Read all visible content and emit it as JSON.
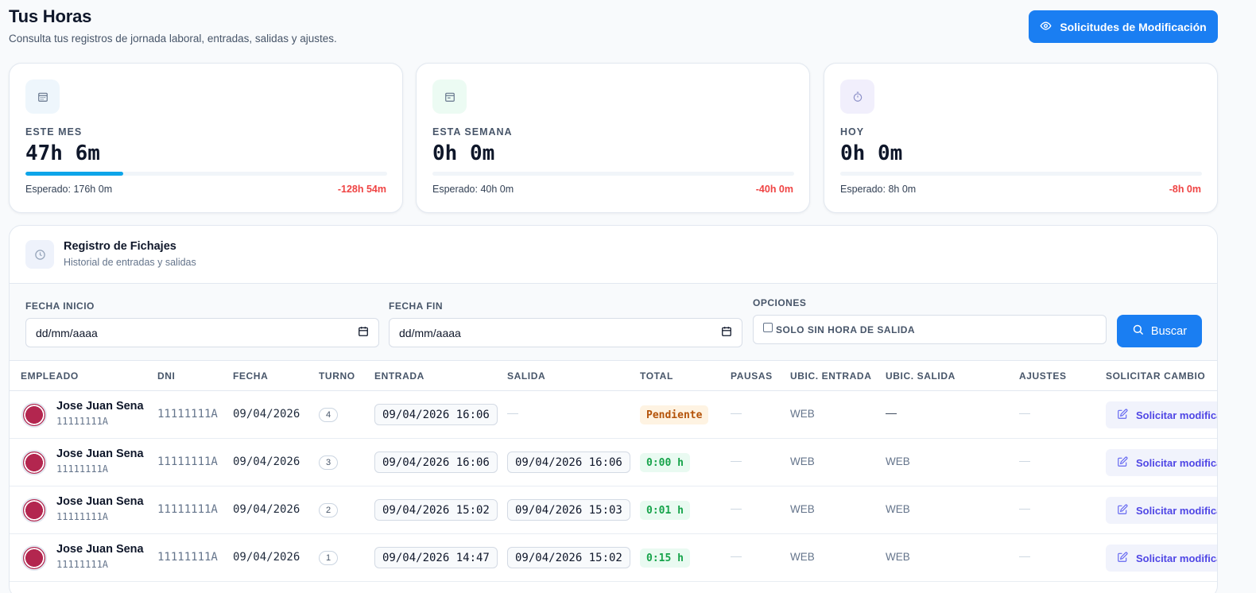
{
  "header": {
    "title": "Tus Horas",
    "subtitle": "Consulta tus registros de jornada laboral, entradas, salidas y ajustes.",
    "requests_button": "Solicitudes de Modificación"
  },
  "stats": [
    {
      "label": "ESTE MES",
      "value": "47h 6m",
      "progress": 0.27,
      "expected": "Esperado: 176h 0m",
      "diff": "-128h 54m",
      "icon": "calendar-icon",
      "icon_bg": "#eef6fc",
      "icon_color": "#64748b"
    },
    {
      "label": "ESTA SEMANA",
      "value": "0h 0m",
      "progress": 0,
      "expected": "Esperado: 40h 0m",
      "diff": "-40h 0m",
      "icon": "calendar-week-icon",
      "icon_bg": "#ecfbf3",
      "icon_color": "#64748b"
    },
    {
      "label": "HOY",
      "value": "0h 0m",
      "progress": 0,
      "expected": "Esperado: 8h 0m",
      "diff": "-8h 0m",
      "icon": "timer-icon",
      "icon_bg": "#f1effc",
      "icon_color": "#8b8fc7"
    }
  ],
  "panel": {
    "title": "Registro de Fichajes",
    "subtitle": "Historial de entradas y salidas",
    "icon": "clock-icon"
  },
  "filters": {
    "start_label": "FECHA INICIO",
    "start_value": "dd/mm/aaaa",
    "end_label": "FECHA FIN",
    "end_value": "dd/mm/aaaa",
    "options_label": "OPCIONES",
    "only_no_exit": "SOLO SIN HORA DE SALIDA",
    "only_no_exit_checked": false,
    "search_button": "Buscar"
  },
  "table": {
    "columns": [
      "EMPLEADO",
      "DNI",
      "FECHA",
      "TURNO",
      "ENTRADA",
      "SALIDA",
      "TOTAL",
      "PAUSAS",
      "UBIC. ENTRADA",
      "UBIC. SALIDA",
      "AJUSTES",
      "SOLICITAR CAMBIO"
    ],
    "rows": [
      {
        "name": "Jose Juan Sena",
        "sub": "11111111A",
        "dni": "11111111A",
        "fecha": "09/04/2026",
        "turno": "4",
        "entrada": "09/04/2026 16:06",
        "salida": "—",
        "total": "Pendiente",
        "total_status": "pending",
        "pausas": "—",
        "ubic_entrada": "WEB",
        "ubic_salida": "—",
        "ajustes": "—",
        "action": "Solicitar modificación"
      },
      {
        "name": "Jose Juan Sena",
        "sub": "11111111A",
        "dni": "11111111A",
        "fecha": "09/04/2026",
        "turno": "3",
        "entrada": "09/04/2026 16:06",
        "salida": "09/04/2026 16:06",
        "total": "0:00 h",
        "total_status": "ok",
        "pausas": "—",
        "ubic_entrada": "WEB",
        "ubic_salida": "WEB",
        "ajustes": "—",
        "action": "Solicitar modificación"
      },
      {
        "name": "Jose Juan Sena",
        "sub": "11111111A",
        "dni": "11111111A",
        "fecha": "09/04/2026",
        "turno": "2",
        "entrada": "09/04/2026 15:02",
        "salida": "09/04/2026 15:03",
        "total": "0:01 h",
        "total_status": "ok",
        "pausas": "—",
        "ubic_entrada": "WEB",
        "ubic_salida": "WEB",
        "ajustes": "—",
        "action": "Solicitar modificación"
      },
      {
        "name": "Jose Juan Sena",
        "sub": "11111111A",
        "dni": "11111111A",
        "fecha": "09/04/2026",
        "turno": "1",
        "entrada": "09/04/2026 14:47",
        "salida": "09/04/2026 15:02",
        "total": "0:15 h",
        "total_status": "ok",
        "pausas": "—",
        "ubic_entrada": "WEB",
        "ubic_salida": "WEB",
        "ajustes": "—",
        "action": "Solicitar modificación"
      }
    ]
  },
  "colors": {
    "primary": "#1a7ef2",
    "progress": "#0ea5e9",
    "negative": "#ef4444",
    "pending_bg": "#fef3e2",
    "pending_text": "#b45309",
    "ok_bg": "#e9faf1",
    "ok_text": "#16a34a",
    "action_text": "#4f46e5"
  }
}
